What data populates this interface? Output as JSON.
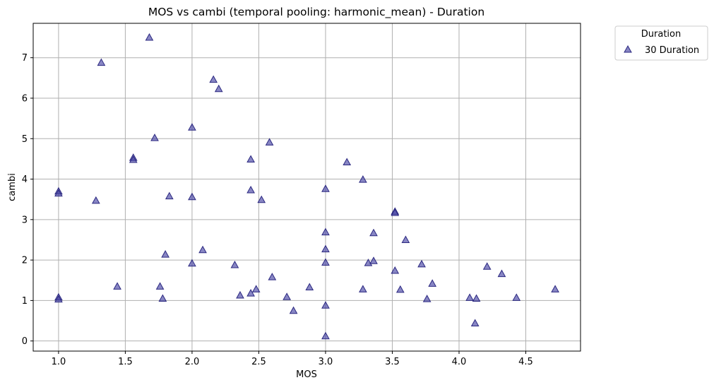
{
  "chart_data": {
    "type": "scatter",
    "title": "MOS vs cambi (temporal pooling: harmonic_mean) - Duration",
    "xlabel": "MOS",
    "ylabel": "cambi",
    "xlim": [
      0.81,
      4.91
    ],
    "ylim": [
      -0.25,
      7.85
    ],
    "xticks": [
      1.0,
      1.5,
      2.0,
      2.5,
      3.0,
      3.5,
      4.0,
      4.5
    ],
    "xtick_labels": [
      "1.0",
      "1.5",
      "2.0",
      "2.5",
      "3.0",
      "3.5",
      "4.0",
      "4.5"
    ],
    "yticks": [
      0,
      1,
      2,
      3,
      4,
      5,
      6,
      7
    ],
    "ytick_labels": [
      "0",
      "1",
      "2",
      "3",
      "4",
      "5",
      "6",
      "7"
    ],
    "grid": true,
    "legend": {
      "title": "Duration",
      "placement": "outside-top-right"
    },
    "series": [
      {
        "name": "30 Duration",
        "marker": "triangle",
        "color": "#3f3ba0",
        "points": [
          [
            1.0,
            3.7
          ],
          [
            1.0,
            3.65
          ],
          [
            1.0,
            1.08
          ],
          [
            1.0,
            1.03
          ],
          [
            1.28,
            3.47
          ],
          [
            1.32,
            6.88
          ],
          [
            1.44,
            1.35
          ],
          [
            1.56,
            4.53
          ],
          [
            1.56,
            4.48
          ],
          [
            1.68,
            7.5
          ],
          [
            1.72,
            5.02
          ],
          [
            1.76,
            1.35
          ],
          [
            1.78,
            1.05
          ],
          [
            1.8,
            2.14
          ],
          [
            1.83,
            3.58
          ],
          [
            2.0,
            5.28
          ],
          [
            2.0,
            3.56
          ],
          [
            2.0,
            1.92
          ],
          [
            2.08,
            2.25
          ],
          [
            2.16,
            6.46
          ],
          [
            2.2,
            6.23
          ],
          [
            2.32,
            1.88
          ],
          [
            2.36,
            1.13
          ],
          [
            2.44,
            4.49
          ],
          [
            2.44,
            3.73
          ],
          [
            2.44,
            1.18
          ],
          [
            2.48,
            1.28
          ],
          [
            2.52,
            3.49
          ],
          [
            2.58,
            4.91
          ],
          [
            2.6,
            1.58
          ],
          [
            2.71,
            1.09
          ],
          [
            2.76,
            0.75
          ],
          [
            2.88,
            1.33
          ],
          [
            3.0,
            3.76
          ],
          [
            3.0,
            2.69
          ],
          [
            3.0,
            2.27
          ],
          [
            3.0,
            1.94
          ],
          [
            3.0,
            0.88
          ],
          [
            3.0,
            0.12
          ],
          [
            3.16,
            4.42
          ],
          [
            3.28,
            3.99
          ],
          [
            3.28,
            1.28
          ],
          [
            3.32,
            1.93
          ],
          [
            3.36,
            2.67
          ],
          [
            3.36,
            1.98
          ],
          [
            3.52,
            3.2
          ],
          [
            3.52,
            3.17
          ],
          [
            3.52,
            1.74
          ],
          [
            3.56,
            1.27
          ],
          [
            3.6,
            2.5
          ],
          [
            3.72,
            1.9
          ],
          [
            3.76,
            1.04
          ],
          [
            3.8,
            1.42
          ],
          [
            4.08,
            1.07
          ],
          [
            4.12,
            0.44
          ],
          [
            4.13,
            1.05
          ],
          [
            4.21,
            1.84
          ],
          [
            4.32,
            1.66
          ],
          [
            4.43,
            1.07
          ],
          [
            4.72,
            1.28
          ]
        ]
      }
    ]
  }
}
